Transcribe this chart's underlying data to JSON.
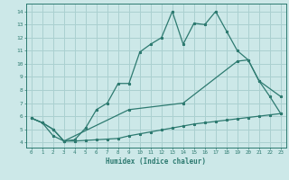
{
  "title": "",
  "xlabel": "Humidex (Indice chaleur)",
  "bg_color": "#cce8e8",
  "grid_color": "#aad0d0",
  "line_color": "#2d7a70",
  "x_ticks": [
    0,
    1,
    2,
    3,
    4,
    5,
    6,
    7,
    8,
    9,
    10,
    11,
    12,
    13,
    14,
    15,
    16,
    17,
    18,
    19,
    20,
    21,
    22,
    23
  ],
  "y_ticks": [
    4,
    5,
    6,
    7,
    8,
    9,
    10,
    11,
    12,
    13,
    14
  ],
  "ylim": [
    3.6,
    14.6
  ],
  "xlim": [
    -0.5,
    23.5
  ],
  "line1_x": [
    0,
    1,
    2,
    3,
    4,
    5,
    6,
    7,
    8,
    9,
    10,
    11,
    12,
    13,
    14,
    15,
    16,
    17,
    18,
    19,
    20,
    21,
    22,
    23
  ],
  "line1_y": [
    5.85,
    5.5,
    4.5,
    4.1,
    4.1,
    4.15,
    4.2,
    4.25,
    4.3,
    4.5,
    4.65,
    4.8,
    4.95,
    5.1,
    5.25,
    5.4,
    5.5,
    5.6,
    5.7,
    5.8,
    5.9,
    6.0,
    6.1,
    6.2
  ],
  "line2_x": [
    0,
    1,
    2,
    3,
    4,
    5,
    6,
    7,
    8,
    9,
    10,
    11,
    12,
    13,
    14,
    15,
    16,
    17,
    18,
    19,
    20,
    21,
    22,
    23
  ],
  "line2_y": [
    5.85,
    5.5,
    5.0,
    4.1,
    4.2,
    5.1,
    6.5,
    7.0,
    8.5,
    8.5,
    10.9,
    11.5,
    12.0,
    14.0,
    11.5,
    13.1,
    13.0,
    14.0,
    12.5,
    11.0,
    10.3,
    8.7,
    7.5,
    6.2
  ],
  "line3_x": [
    0,
    1,
    2,
    3,
    9,
    14,
    19,
    20,
    21,
    23
  ],
  "line3_y": [
    5.85,
    5.5,
    5.0,
    4.1,
    6.5,
    7.0,
    10.2,
    10.3,
    8.7,
    7.5
  ]
}
